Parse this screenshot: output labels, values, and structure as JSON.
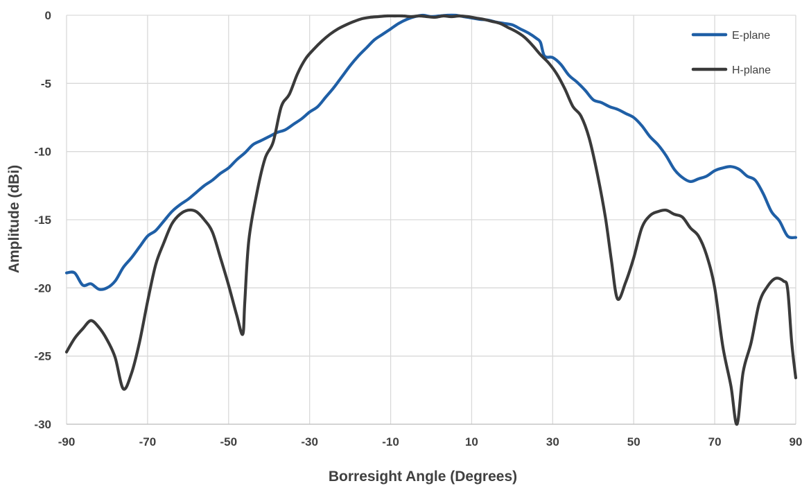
{
  "chart_data": {
    "type": "line",
    "title": "",
    "xlabel": "Borresight Angle (Degrees)",
    "ylabel": "Amplitude (dBi)",
    "xlim": [
      -90,
      90
    ],
    "ylim": [
      -30,
      0
    ],
    "xticks": [
      -90,
      -70,
      -50,
      -30,
      -10,
      10,
      30,
      50,
      70,
      90
    ],
    "yticks": [
      0,
      -5,
      -10,
      -15,
      -20,
      -25,
      -30
    ],
    "grid": true,
    "legend_position": "top-right",
    "series": [
      {
        "name": "E-plane",
        "color": "#1f5fa6",
        "points": [
          [
            -90,
            -18.9
          ],
          [
            -88,
            -18.9
          ],
          [
            -86,
            -19.8
          ],
          [
            -84,
            -19.7
          ],
          [
            -82,
            -20.1
          ],
          [
            -80,
            -20.0
          ],
          [
            -78,
            -19.5
          ],
          [
            -76,
            -18.5
          ],
          [
            -74,
            -17.8
          ],
          [
            -72,
            -17.0
          ],
          [
            -70,
            -16.2
          ],
          [
            -68,
            -15.8
          ],
          [
            -66,
            -15.1
          ],
          [
            -64,
            -14.4
          ],
          [
            -62,
            -13.9
          ],
          [
            -60,
            -13.5
          ],
          [
            -58,
            -13.0
          ],
          [
            -56,
            -12.5
          ],
          [
            -54,
            -12.1
          ],
          [
            -52,
            -11.6
          ],
          [
            -50,
            -11.2
          ],
          [
            -48,
            -10.6
          ],
          [
            -46,
            -10.1
          ],
          [
            -44,
            -9.5
          ],
          [
            -42,
            -9.2
          ],
          [
            -40,
            -8.9
          ],
          [
            -38,
            -8.6
          ],
          [
            -36,
            -8.4
          ],
          [
            -34,
            -8.0
          ],
          [
            -32,
            -7.6
          ],
          [
            -30,
            -7.1
          ],
          [
            -28,
            -6.7
          ],
          [
            -26,
            -6.0
          ],
          [
            -24,
            -5.3
          ],
          [
            -22,
            -4.5
          ],
          [
            -20,
            -3.7
          ],
          [
            -18,
            -3.0
          ],
          [
            -16,
            -2.4
          ],
          [
            -14,
            -1.8
          ],
          [
            -12,
            -1.4
          ],
          [
            -10,
            -1.0
          ],
          [
            -8,
            -0.6
          ],
          [
            -6,
            -0.3
          ],
          [
            -4,
            -0.1
          ],
          [
            -2,
            0.0
          ],
          [
            0,
            -0.1
          ],
          [
            2,
            -0.05
          ],
          [
            4,
            0.0
          ],
          [
            6,
            0.0
          ],
          [
            8,
            -0.1
          ],
          [
            10,
            -0.2
          ],
          [
            12,
            -0.3
          ],
          [
            14,
            -0.35
          ],
          [
            16,
            -0.5
          ],
          [
            18,
            -0.6
          ],
          [
            20,
            -0.7
          ],
          [
            22,
            -1.0
          ],
          [
            24,
            -1.3
          ],
          [
            26,
            -1.7
          ],
          [
            27,
            -2.0
          ],
          [
            28,
            -3.0
          ],
          [
            30,
            -3.1
          ],
          [
            32,
            -3.6
          ],
          [
            34,
            -4.4
          ],
          [
            36,
            -4.9
          ],
          [
            38,
            -5.5
          ],
          [
            40,
            -6.2
          ],
          [
            42,
            -6.4
          ],
          [
            44,
            -6.7
          ],
          [
            46,
            -6.9
          ],
          [
            48,
            -7.2
          ],
          [
            50,
            -7.5
          ],
          [
            52,
            -8.1
          ],
          [
            54,
            -8.9
          ],
          [
            56,
            -9.5
          ],
          [
            58,
            -10.3
          ],
          [
            60,
            -11.3
          ],
          [
            62,
            -11.9
          ],
          [
            64,
            -12.2
          ],
          [
            66,
            -12.0
          ],
          [
            68,
            -11.8
          ],
          [
            70,
            -11.4
          ],
          [
            72,
            -11.2
          ],
          [
            74,
            -11.1
          ],
          [
            76,
            -11.3
          ],
          [
            78,
            -11.8
          ],
          [
            80,
            -12.1
          ],
          [
            82,
            -13.1
          ],
          [
            84,
            -14.4
          ],
          [
            86,
            -15.1
          ],
          [
            88,
            -16.2
          ],
          [
            90,
            -16.3
          ]
        ]
      },
      {
        "name": "H-plane",
        "color": "#3a3a3a",
        "points": [
          [
            -90,
            -24.7
          ],
          [
            -88,
            -23.7
          ],
          [
            -86,
            -23.0
          ],
          [
            -84,
            -22.4
          ],
          [
            -82,
            -22.9
          ],
          [
            -80,
            -23.8
          ],
          [
            -78,
            -25.1
          ],
          [
            -76,
            -27.4
          ],
          [
            -74,
            -26.3
          ],
          [
            -72,
            -24.0
          ],
          [
            -70,
            -21.0
          ],
          [
            -68,
            -18.3
          ],
          [
            -66,
            -16.7
          ],
          [
            -64,
            -15.3
          ],
          [
            -62,
            -14.6
          ],
          [
            -60,
            -14.3
          ],
          [
            -58,
            -14.4
          ],
          [
            -56,
            -15.0
          ],
          [
            -54,
            -15.9
          ],
          [
            -52,
            -17.8
          ],
          [
            -50,
            -19.8
          ],
          [
            -48,
            -22.0
          ],
          [
            -46.5,
            -23.4
          ],
          [
            -46,
            -21.0
          ],
          [
            -45,
            -16.5
          ],
          [
            -43,
            -13.0
          ],
          [
            -41,
            -10.5
          ],
          [
            -39,
            -9.3
          ],
          [
            -37,
            -6.7
          ],
          [
            -35,
            -5.8
          ],
          [
            -33,
            -4.3
          ],
          [
            -31,
            -3.2
          ],
          [
            -29,
            -2.5
          ],
          [
            -27,
            -1.9
          ],
          [
            -25,
            -1.4
          ],
          [
            -23,
            -1.0
          ],
          [
            -21,
            -0.7
          ],
          [
            -19,
            -0.45
          ],
          [
            -17,
            -0.25
          ],
          [
            -15,
            -0.15
          ],
          [
            -13,
            -0.1
          ],
          [
            -11,
            -0.05
          ],
          [
            -9,
            -0.05
          ],
          [
            -7,
            -0.05
          ],
          [
            -5,
            -0.1
          ],
          [
            -3,
            -0.05
          ],
          [
            -1,
            -0.1
          ],
          [
            1,
            -0.15
          ],
          [
            3,
            -0.05
          ],
          [
            5,
            -0.1
          ],
          [
            7,
            -0.05
          ],
          [
            9,
            -0.1
          ],
          [
            11,
            -0.2
          ],
          [
            13,
            -0.3
          ],
          [
            15,
            -0.45
          ],
          [
            17,
            -0.6
          ],
          [
            19,
            -0.9
          ],
          [
            21,
            -1.2
          ],
          [
            23,
            -1.6
          ],
          [
            25,
            -2.2
          ],
          [
            27,
            -2.9
          ],
          [
            29,
            -3.5
          ],
          [
            31,
            -4.3
          ],
          [
            33,
            -5.4
          ],
          [
            35,
            -6.7
          ],
          [
            37,
            -7.4
          ],
          [
            39,
            -9.0
          ],
          [
            41,
            -11.6
          ],
          [
            43,
            -14.8
          ],
          [
            44.5,
            -18.0
          ],
          [
            46,
            -20.8
          ],
          [
            48,
            -19.6
          ],
          [
            50,
            -17.8
          ],
          [
            52,
            -15.6
          ],
          [
            54,
            -14.7
          ],
          [
            56,
            -14.4
          ],
          [
            58,
            -14.3
          ],
          [
            60,
            -14.6
          ],
          [
            62,
            -14.8
          ],
          [
            64,
            -15.6
          ],
          [
            66,
            -16.2
          ],
          [
            68,
            -17.6
          ],
          [
            70,
            -20.0
          ],
          [
            72,
            -24.3
          ],
          [
            74,
            -27.2
          ],
          [
            75.5,
            -30.0
          ],
          [
            77,
            -26.2
          ],
          [
            79,
            -24.0
          ],
          [
            81,
            -21.1
          ],
          [
            83,
            -19.9
          ],
          [
            85,
            -19.3
          ],
          [
            87,
            -19.5
          ],
          [
            88,
            -20.1
          ],
          [
            89,
            -24.0
          ],
          [
            90,
            -26.6
          ]
        ]
      }
    ]
  }
}
